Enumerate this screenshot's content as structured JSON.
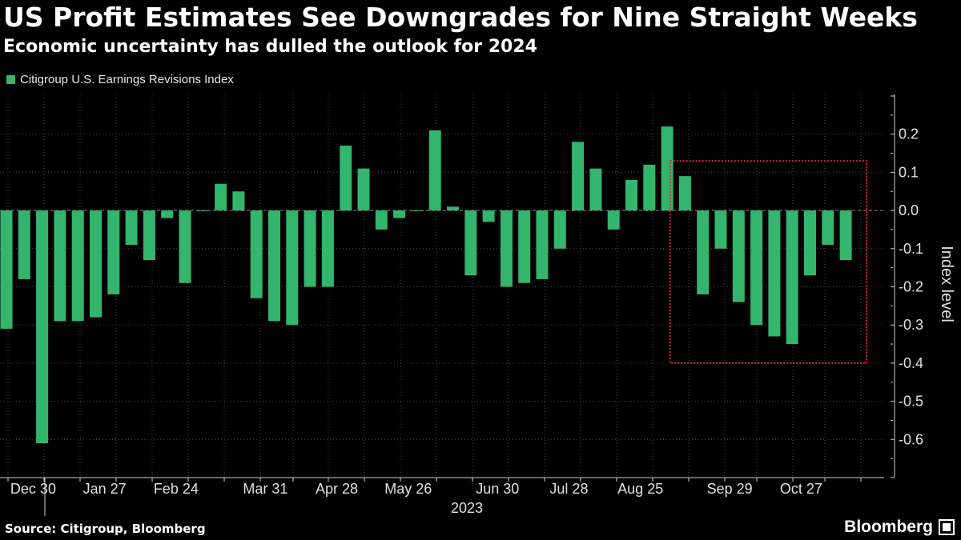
{
  "header": {
    "title": "US Profit Estimates See Downgrades for Nine Straight Weeks",
    "subtitle": "Economic uncertainty has dulled the outlook for 2024"
  },
  "footer": {
    "source": "Source: Citigroup, Bloomberg",
    "brand": "Bloomberg"
  },
  "colors": {
    "bar": "#33b56d",
    "grid": "#4a4a4a",
    "highlight": "#d6243a"
  },
  "chart_data": {
    "type": "bar",
    "title": "US Profit Estimates See Downgrades for Nine Straight Weeks",
    "subtitle": "Economic uncertainty has dulled the outlook for 2024",
    "series": [
      {
        "name": "Citigroup U.S. Earnings Revisions Index",
        "values": [
          -0.31,
          -0.18,
          -0.61,
          -0.29,
          -0.29,
          -0.28,
          -0.22,
          -0.09,
          -0.13,
          -0.02,
          -0.19,
          0.0,
          0.07,
          0.05,
          -0.23,
          -0.29,
          -0.3,
          -0.2,
          -0.2,
          0.17,
          0.11,
          -0.05,
          -0.02,
          0.0,
          0.21,
          0.01,
          -0.17,
          -0.03,
          -0.2,
          -0.19,
          -0.18,
          -0.1,
          0.18,
          0.11,
          -0.05,
          0.08,
          0.12,
          0.22,
          0.09,
          -0.22,
          -0.1,
          -0.24,
          -0.3,
          -0.33,
          -0.35,
          -0.17,
          -0.09,
          -0.13
        ]
      }
    ],
    "x_tick_labels": [
      "Dec 30",
      "Jan 27",
      "Feb 24",
      "Mar 31",
      "Apr 28",
      "May 26",
      "Jun 30",
      "Jul 28",
      "Aug 25",
      "Sep 29",
      "Oct 27"
    ],
    "x_tick_bar_index": [
      1.5,
      5.5,
      9.5,
      14.5,
      18.5,
      22.5,
      27.5,
      31.5,
      35.5,
      40.5,
      44.5
    ],
    "x_year_label": "2023",
    "ylabel": "Index level",
    "ylim": [
      -0.7,
      0.3
    ],
    "y_ticks": [
      0.2,
      0.1,
      0.0,
      -0.1,
      -0.2,
      -0.3,
      -0.4,
      -0.5,
      -0.6
    ],
    "y_tick_labels": [
      "0.2",
      "0.1",
      "0.0",
      "-0.1",
      "-0.2",
      "-0.3",
      "-0.4",
      "-0.5",
      "-0.6"
    ],
    "legend_position": "top-left",
    "grid": true,
    "annotation": {
      "type": "dotted-box",
      "from_bar_index": 37.5,
      "to_bar_index": 48.5,
      "y_top": 0.13,
      "y_bottom": -0.4
    }
  }
}
